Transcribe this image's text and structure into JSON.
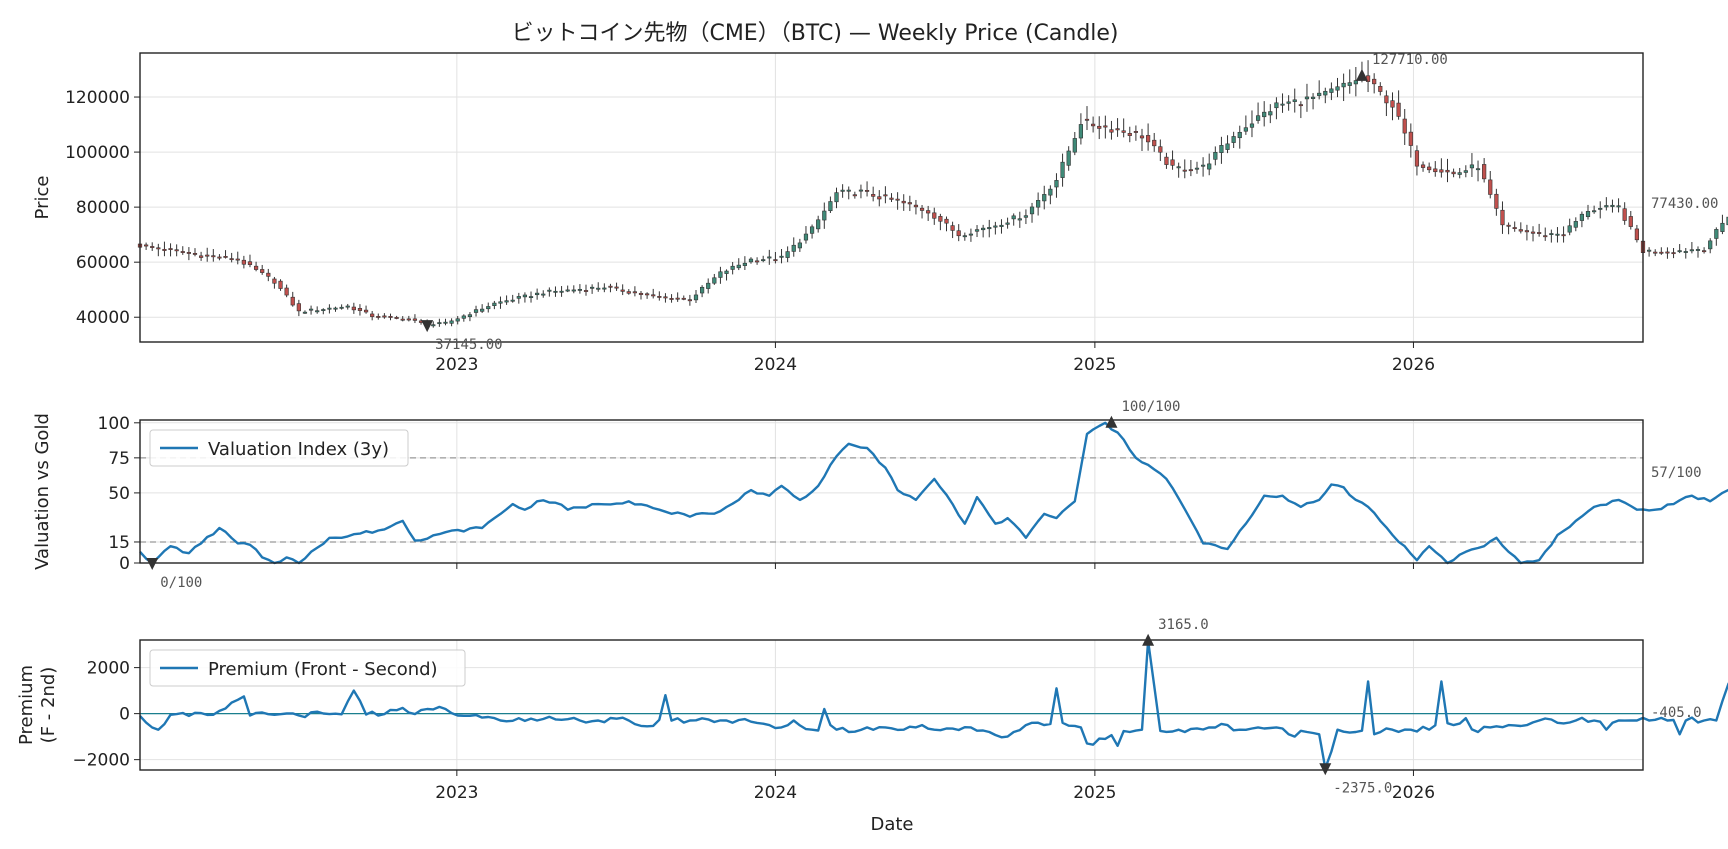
{
  "title": "ビットコイン先物（CME）（BTC) — Weekly Price (Candle)",
  "chart_data": {
    "type": "candlestick",
    "x_range": [
      "2022-01-03",
      "2026-09-21"
    ],
    "year_ticks": [
      "2023",
      "2024",
      "2025",
      "2026"
    ],
    "colors": {
      "up": "#3f8a78",
      "down": "#c0504d",
      "line": "#1f77b4",
      "dashed": "#999999",
      "grid": "#e2e2e2"
    },
    "panels": [
      {
        "id": "price",
        "type": "candlestick",
        "ylabel": "Price",
        "ylim": [
          31000,
          136000
        ],
        "yticks": [
          40000,
          60000,
          80000,
          100000,
          120000
        ],
        "close_anchors": [
          [
            0,
            66000
          ],
          [
            10,
            62500
          ],
          [
            16,
            61000
          ],
          [
            22,
            53000
          ],
          [
            26,
            42000
          ],
          [
            34,
            44000
          ],
          [
            38,
            40500
          ],
          [
            44,
            39200
          ],
          [
            47,
            37145
          ],
          [
            50,
            37800
          ],
          [
            58,
            45000
          ],
          [
            66,
            49000
          ],
          [
            76,
            51000
          ],
          [
            84,
            47500
          ],
          [
            90,
            46500
          ],
          [
            95,
            56000
          ],
          [
            100,
            61000
          ],
          [
            105,
            61500
          ],
          [
            110,
            72000
          ],
          [
            114,
            85000
          ],
          [
            118,
            85500
          ],
          [
            124,
            82000
          ],
          [
            129,
            78500
          ],
          [
            134,
            70000
          ],
          [
            140,
            73500
          ],
          [
            145,
            77500
          ],
          [
            150,
            90000
          ],
          [
            154,
            111000
          ],
          [
            160,
            108000
          ],
          [
            164,
            106000
          ],
          [
            169,
            94000
          ],
          [
            174,
            94500
          ],
          [
            180,
            108000
          ],
          [
            186,
            117000
          ],
          [
            193,
            120000
          ],
          [
            198,
            125000
          ],
          [
            200,
            127710
          ],
          [
            205,
            117000
          ],
          [
            209,
            96000
          ],
          [
            215,
            92000
          ],
          [
            219,
            95000
          ],
          [
            223,
            73000
          ],
          [
            229,
            70000
          ],
          [
            233,
            70500
          ],
          [
            237,
            79000
          ],
          [
            242,
            80000
          ],
          [
            246,
            64000
          ],
          [
            251,
            64000
          ],
          [
            256,
            65000
          ],
          [
            260,
            77000
          ],
          [
            262,
            77430
          ]
        ],
        "annotations": {
          "max": {
            "index": 200,
            "value": 127710.0,
            "label": "127710.00"
          },
          "min": {
            "index": 47,
            "value": 37145.0,
            "label": "37145.00"
          },
          "last": {
            "index": 262,
            "value": 77430.0,
            "label": "77430.00"
          }
        }
      },
      {
        "id": "valuation",
        "type": "line",
        "ylabel": "Valuation vs Gold",
        "ylim": [
          0,
          102
        ],
        "yticks": [
          0,
          15,
          50,
          75,
          100
        ],
        "hlines": [
          75,
          15
        ],
        "legend": "Valuation Index (3y)",
        "anchors": [
          [
            0,
            8
          ],
          [
            2,
            0
          ],
          [
            5,
            12
          ],
          [
            8,
            7
          ],
          [
            10,
            14
          ],
          [
            13,
            25
          ],
          [
            16,
            14
          ],
          [
            18,
            13
          ],
          [
            20,
            4
          ],
          [
            22,
            0
          ],
          [
            24,
            4
          ],
          [
            26,
            0
          ],
          [
            28,
            8
          ],
          [
            31,
            18
          ],
          [
            33,
            18
          ],
          [
            36,
            21
          ],
          [
            40,
            24
          ],
          [
            43,
            30
          ],
          [
            45,
            16
          ],
          [
            50,
            22
          ],
          [
            56,
            25
          ],
          [
            59,
            35
          ],
          [
            61,
            42
          ],
          [
            63,
            38
          ],
          [
            65,
            44
          ],
          [
            68,
            43
          ],
          [
            70,
            38
          ],
          [
            75,
            42
          ],
          [
            80,
            44
          ],
          [
            85,
            38
          ],
          [
            90,
            33
          ],
          [
            95,
            37
          ],
          [
            98,
            45
          ],
          [
            100,
            52
          ],
          [
            103,
            48
          ],
          [
            105,
            55
          ],
          [
            108,
            45
          ],
          [
            111,
            55
          ],
          [
            113,
            70
          ],
          [
            116,
            85
          ],
          [
            119,
            82
          ],
          [
            122,
            68
          ],
          [
            124,
            52
          ],
          [
            127,
            45
          ],
          [
            130,
            60
          ],
          [
            133,
            42
          ],
          [
            135,
            28
          ],
          [
            137,
            47
          ],
          [
            140,
            28
          ],
          [
            142,
            32
          ],
          [
            145,
            18
          ],
          [
            148,
            35
          ],
          [
            150,
            32
          ],
          [
            153,
            44
          ],
          [
            155,
            92
          ],
          [
            158,
            100
          ],
          [
            161,
            88
          ],
          [
            163,
            75
          ],
          [
            165,
            70
          ],
          [
            168,
            60
          ],
          [
            170,
            46
          ],
          [
            174,
            14
          ],
          [
            178,
            10
          ],
          [
            181,
            28
          ],
          [
            184,
            48
          ],
          [
            187,
            48
          ],
          [
            190,
            40
          ],
          [
            193,
            45
          ],
          [
            195,
            56
          ],
          [
            197,
            54
          ],
          [
            199,
            45
          ],
          [
            201,
            40
          ],
          [
            203,
            30
          ],
          [
            205,
            20
          ],
          [
            207,
            12
          ],
          [
            209,
            2
          ],
          [
            211,
            12
          ],
          [
            214,
            0
          ],
          [
            217,
            8
          ],
          [
            220,
            12
          ],
          [
            222,
            18
          ],
          [
            224,
            8
          ],
          [
            226,
            0
          ],
          [
            229,
            2
          ],
          [
            232,
            20
          ],
          [
            235,
            30
          ],
          [
            238,
            40
          ],
          [
            242,
            45
          ],
          [
            245,
            38
          ],
          [
            248,
            38
          ],
          [
            251,
            42
          ],
          [
            254,
            48
          ],
          [
            257,
            44
          ],
          [
            259,
            50
          ],
          [
            262,
            57
          ]
        ],
        "annotations": {
          "max": {
            "index": 159,
            "value": 100,
            "label": "100/100"
          },
          "min": {
            "index": 2,
            "value": 0,
            "label": "0/100"
          },
          "last": {
            "index": 262,
            "value": 57,
            "label": "57/100"
          }
        }
      },
      {
        "id": "premium",
        "type": "line",
        "ylabel": [
          "Premium",
          "(F - 2nd)"
        ],
        "ylim": [
          -2450,
          3200
        ],
        "yticks": [
          -2000,
          0,
          2000
        ],
        "hlines": [
          0
        ],
        "legend": "Premium (Front - Second)",
        "anchors": [
          [
            0,
            -100
          ],
          [
            3,
            -700
          ],
          [
            5,
            -50
          ],
          [
            8,
            -100
          ],
          [
            12,
            -50
          ],
          [
            17,
            750
          ],
          [
            18,
            -80
          ],
          [
            22,
            -50
          ],
          [
            26,
            -80
          ],
          [
            31,
            -20
          ],
          [
            33,
            -30
          ],
          [
            35,
            1000
          ],
          [
            37,
            -40
          ],
          [
            40,
            -20
          ],
          [
            43,
            250
          ],
          [
            45,
            -20
          ],
          [
            47,
            200
          ],
          [
            50,
            200
          ],
          [
            52,
            -80
          ],
          [
            55,
            -60
          ],
          [
            59,
            -300
          ],
          [
            62,
            -200
          ],
          [
            65,
            -300
          ],
          [
            68,
            -250
          ],
          [
            72,
            -300
          ],
          [
            75,
            -300
          ],
          [
            80,
            -300
          ],
          [
            83,
            -550
          ],
          [
            86,
            -300
          ],
          [
            90,
            -300
          ],
          [
            93,
            -250
          ],
          [
            96,
            -300
          ],
          [
            100,
            -350
          ],
          [
            103,
            -500
          ],
          [
            105,
            -600
          ],
          [
            107,
            -300
          ],
          [
            110,
            -700
          ],
          [
            113,
            -500
          ],
          [
            116,
            -800
          ],
          [
            119,
            -600
          ],
          [
            122,
            -600
          ],
          [
            125,
            -700
          ],
          [
            128,
            -500
          ],
          [
            130,
            -700
          ],
          [
            133,
            -650
          ],
          [
            136,
            -600
          ],
          [
            139,
            -800
          ],
          [
            142,
            -1000
          ],
          [
            145,
            -500
          ],
          [
            148,
            -500
          ],
          [
            151,
            -400
          ],
          [
            154,
            -600
          ],
          [
            155,
            -1300
          ],
          [
            158,
            -1100
          ],
          [
            162,
            -800
          ],
          [
            164,
            -700
          ],
          [
            165,
            3165
          ],
          [
            167,
            -750
          ],
          [
            171,
            -800
          ],
          [
            175,
            -600
          ],
          [
            178,
            -500
          ],
          [
            180,
            -700
          ],
          [
            183,
            -600
          ],
          [
            186,
            -600
          ],
          [
            188,
            -900
          ],
          [
            191,
            -800
          ],
          [
            193,
            -900
          ],
          [
            194,
            -2375
          ],
          [
            196,
            -700
          ],
          [
            199,
            -800
          ],
          [
            202,
            -900
          ],
          [
            205,
            -700
          ],
          [
            208,
            -700
          ],
          [
            211,
            -700
          ],
          [
            213,
            -400
          ],
          [
            215,
            -500
          ],
          [
            217,
            -400
          ],
          [
            219,
            -800
          ],
          [
            221,
            -600
          ],
          [
            224,
            -500
          ],
          [
            227,
            -500
          ],
          [
            229,
            -300
          ],
          [
            232,
            -400
          ],
          [
            235,
            -300
          ],
          [
            238,
            -300
          ],
          [
            241,
            -400
          ],
          [
            244,
            -300
          ],
          [
            247,
            -300
          ],
          [
            250,
            -300
          ],
          [
            253,
            -300
          ],
          [
            256,
            -300
          ],
          [
            258,
            -300
          ],
          [
            260,
            1300
          ],
          [
            262,
            -405
          ]
        ],
        "spikes": [
          [
            17,
            750
          ],
          [
            35,
            1000
          ],
          [
            86,
            800
          ],
          [
            112,
            200
          ],
          [
            150,
            1100
          ],
          [
            160,
            -1400
          ],
          [
            201,
            1400
          ],
          [
            213,
            1400
          ],
          [
            217,
            -200
          ],
          [
            240,
            -700
          ],
          [
            252,
            -900
          ]
        ],
        "annotations": {
          "max": {
            "index": 165,
            "value": 3165.0,
            "label": "3165.0"
          },
          "min": {
            "index": 194,
            "value": -2375.0,
            "label": "-2375.0"
          },
          "last": {
            "index": 262,
            "value": -405.0,
            "label": "-405.0"
          }
        }
      }
    ],
    "xlabel": "Date"
  }
}
